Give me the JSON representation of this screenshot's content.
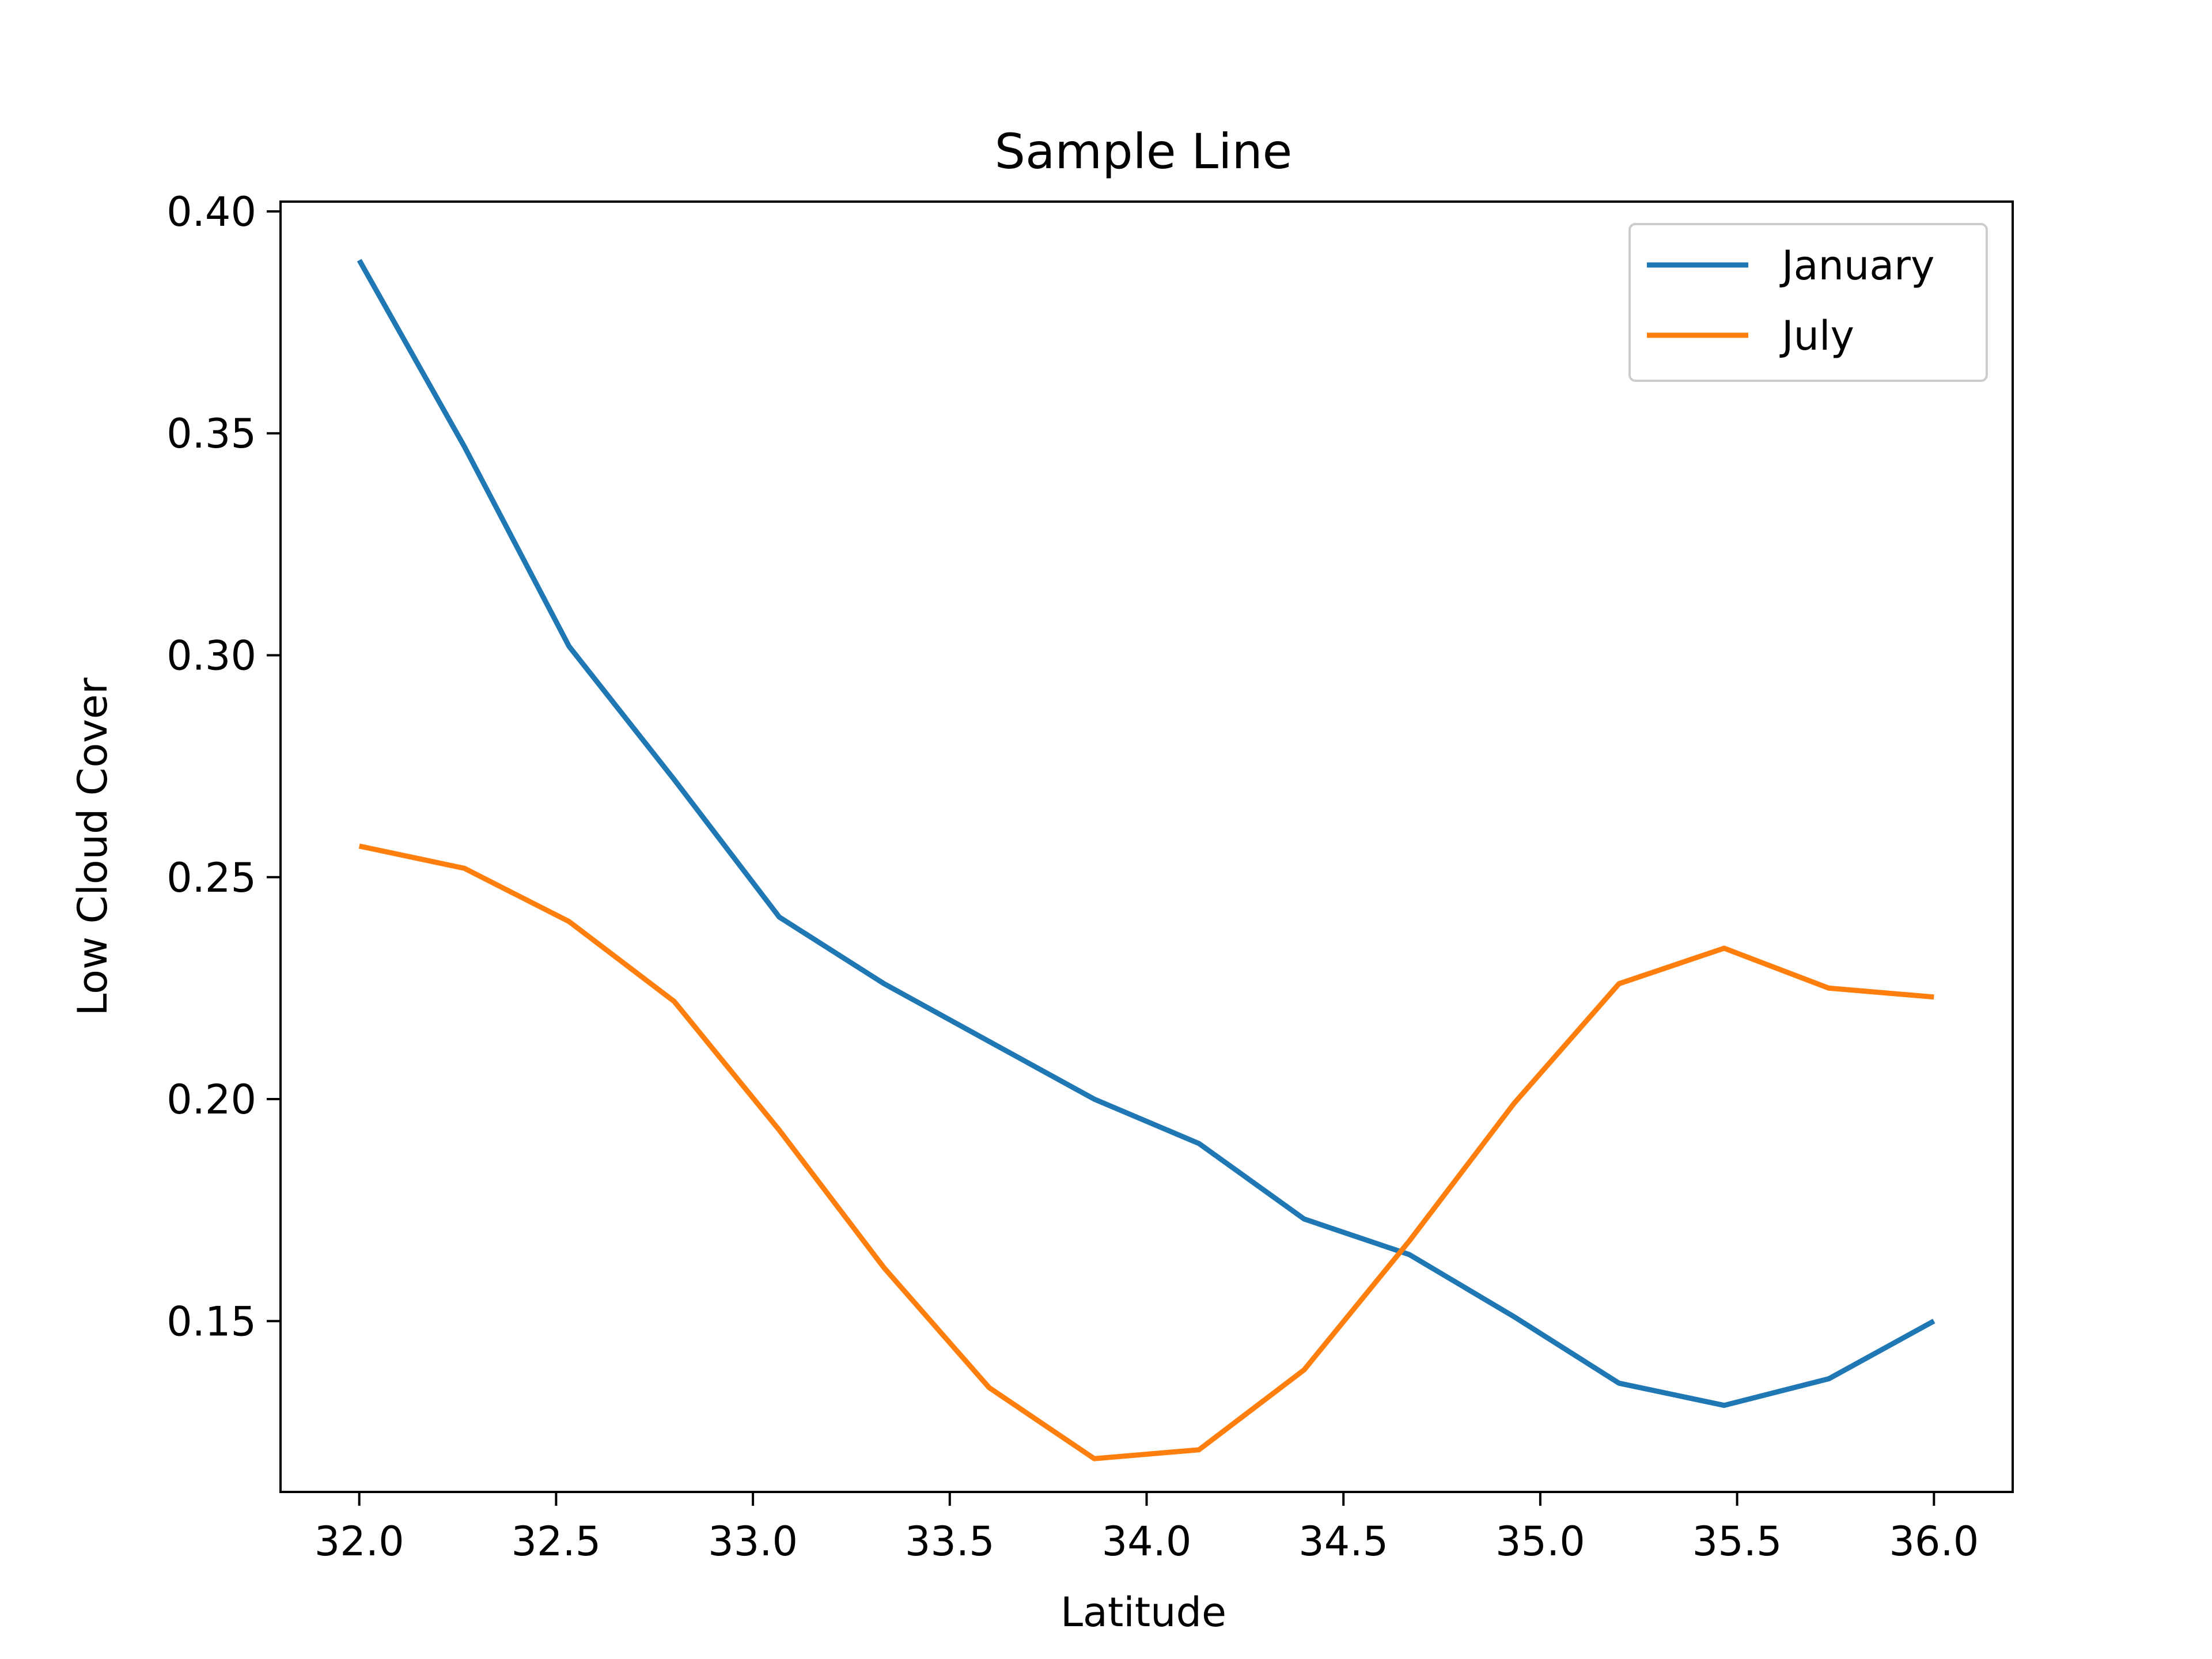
{
  "chart_data": {
    "type": "line",
    "title": "Sample Line",
    "xlabel": "Latitude",
    "ylabel": "Low Cloud Cover",
    "xlim": [
      31.8,
      36.2
    ],
    "ylim": [
      0.1115,
      0.4022
    ],
    "xticks": [
      32.0,
      32.5,
      33.0,
      33.5,
      34.0,
      34.5,
      35.0,
      35.5,
      36.0
    ],
    "xtick_labels": [
      "32.0",
      "32.5",
      "33.0",
      "33.5",
      "34.0",
      "34.5",
      "35.0",
      "35.5",
      "36.0"
    ],
    "yticks": [
      0.15,
      0.2,
      0.25,
      0.3,
      0.35,
      0.4
    ],
    "ytick_labels": [
      "0.15",
      "0.20",
      "0.25",
      "0.30",
      "0.35",
      "0.40"
    ],
    "grid": false,
    "legend_position": "top-right",
    "x": [
      32.0,
      32.267,
      32.533,
      32.8,
      33.067,
      33.333,
      33.6,
      33.867,
      34.133,
      34.4,
      34.667,
      34.933,
      35.2,
      35.467,
      35.733,
      36.0
    ],
    "series": [
      {
        "name": "January",
        "color": "#1f77b4",
        "values": [
          0.389,
          0.347,
          0.302,
          0.272,
          0.241,
          0.226,
          0.213,
          0.2,
          0.19,
          0.173,
          0.165,
          0.151,
          0.136,
          0.131,
          0.137,
          0.15
        ]
      },
      {
        "name": "July",
        "color": "#ff7f0e",
        "values": [
          0.257,
          0.252,
          0.24,
          0.222,
          0.193,
          0.162,
          0.135,
          0.119,
          0.121,
          0.139,
          0.168,
          0.199,
          0.226,
          0.234,
          0.225,
          0.223
        ]
      }
    ]
  }
}
